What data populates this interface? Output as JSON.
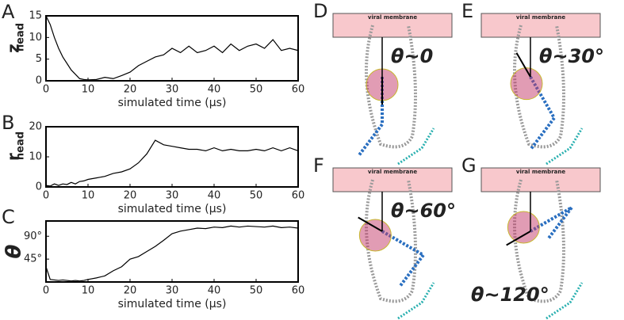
{
  "chart_data": [
    {
      "type": "line",
      "letter": "A",
      "y_label": "z",
      "y_label_subscript": "head",
      "x_label": "simulated time (μs)",
      "x": [
        0,
        1,
        2,
        3,
        4,
        5,
        6,
        7,
        8,
        9,
        10,
        12,
        14,
        16,
        18,
        20,
        22,
        24,
        26,
        28,
        30,
        32,
        34,
        36,
        38,
        40,
        42,
        44,
        46,
        48,
        50,
        52,
        54,
        56,
        58,
        60
      ],
      "series": [
        {
          "color": "#000000",
          "values": [
            15,
            13,
            10,
            7.5,
            5.5,
            4,
            2.5,
            1.5,
            0.5,
            0.3,
            0.2,
            0.3,
            0.8,
            0.5,
            1.2,
            2,
            3.5,
            4.5,
            5.5,
            6,
            7.5,
            6.5,
            8,
            6.5,
            7,
            8,
            6.5,
            8.5,
            7,
            8,
            8.5,
            7.5,
            9.5,
            7,
            7.5,
            7
          ]
        }
      ],
      "xlim": [
        0,
        60
      ],
      "xticks": [
        0,
        10,
        20,
        30,
        40,
        50,
        60
      ],
      "ylim": [
        0,
        15
      ],
      "yticks": [
        0,
        5,
        10,
        15
      ]
    },
    {
      "type": "line",
      "letter": "B",
      "y_label": "r",
      "y_label_subscript": "head",
      "x_label": "simulated time (μs)",
      "x": [
        0,
        1,
        2,
        3,
        4,
        5,
        6,
        7,
        8,
        9,
        10,
        12,
        14,
        16,
        18,
        20,
        22,
        24,
        26,
        28,
        30,
        32,
        34,
        36,
        38,
        40,
        42,
        44,
        46,
        48,
        50,
        52,
        54,
        56,
        58,
        60
      ],
      "series": [
        {
          "color": "#000000",
          "values": [
            0.5,
            0.3,
            1,
            0.5,
            1,
            0.8,
            1.5,
            1,
            1.8,
            2,
            2.5,
            3,
            3.5,
            4.5,
            5,
            6,
            8,
            11,
            15.5,
            14,
            13.5,
            13,
            12.5,
            12.5,
            12,
            13,
            12,
            12.5,
            12,
            12,
            12.5,
            12,
            13,
            12,
            13,
            12
          ]
        }
      ],
      "xlim": [
        0,
        60
      ],
      "xticks": [
        0,
        10,
        20,
        30,
        40,
        50,
        60
      ],
      "ylim": [
        0,
        20
      ],
      "yticks": [
        0,
        10,
        20
      ]
    },
    {
      "type": "line",
      "letter": "C",
      "y_label": "θ",
      "x_label": "simulated time (μs)",
      "x": [
        0,
        1,
        2,
        3,
        4,
        5,
        6,
        7,
        8,
        9,
        10,
        12,
        14,
        16,
        18,
        20,
        22,
        24,
        26,
        28,
        30,
        32,
        34,
        36,
        38,
        40,
        42,
        44,
        46,
        48,
        50,
        52,
        54,
        56,
        58,
        60
      ],
      "series": [
        {
          "color": "#000000",
          "values": [
            30,
            5,
            4,
            3,
            4,
            3,
            2,
            3,
            2,
            3,
            5,
            8,
            12,
            22,
            30,
            45,
            50,
            60,
            70,
            82,
            95,
            100,
            103,
            106,
            105,
            108,
            107,
            110,
            108,
            110,
            109,
            108,
            110,
            107,
            108,
            106
          ]
        }
      ],
      "xlim": [
        0,
        60
      ],
      "xticks": [
        0,
        10,
        20,
        30,
        40,
        50,
        60
      ],
      "ylim": [
        0,
        120
      ],
      "yticks": [
        {
          "value": 45,
          "label": "45°"
        },
        {
          "value": 90,
          "label": "90°"
        }
      ]
    }
  ],
  "panels": [
    {
      "letter": "D",
      "membrane": "viral membrane",
      "angle": "θ~0"
    },
    {
      "letter": "E",
      "membrane": "viral membrane",
      "angle": "θ~30°"
    },
    {
      "letter": "F",
      "membrane": "viral membrane",
      "angle": "θ~60°"
    },
    {
      "letter": "G",
      "membrane": "viral membrane",
      "angle": "θ~120°"
    }
  ]
}
